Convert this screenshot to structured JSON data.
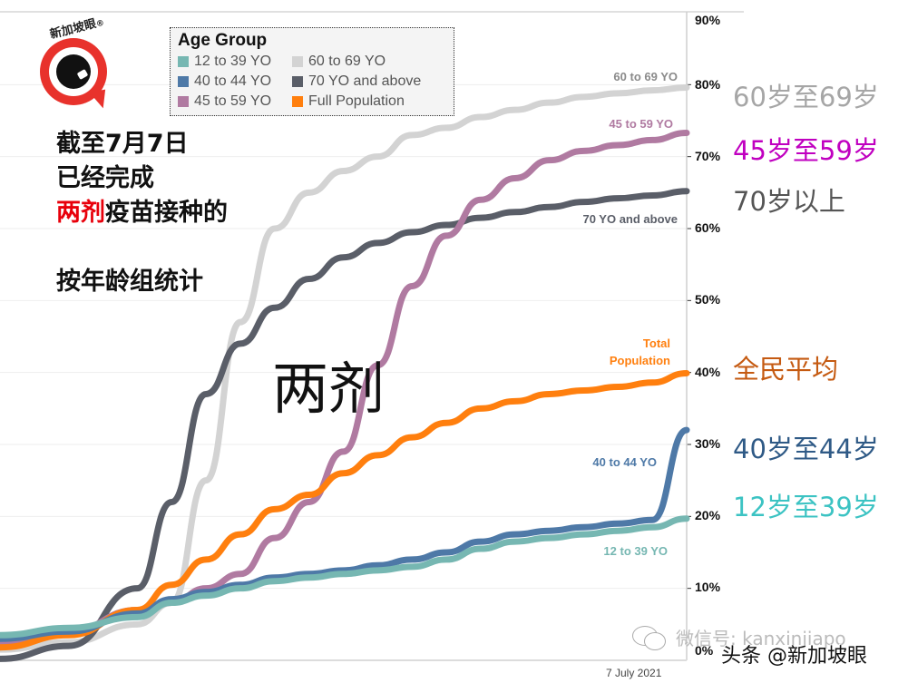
{
  "logo": {
    "text": "新加坡眼",
    "mark": "®"
  },
  "note": {
    "line1": "截至7月7日",
    "line2": "已经完成",
    "line3_red": "两剂",
    "line3_rest": "疫苗接种的",
    "line4": "按年龄组统计"
  },
  "big_label": "两剂",
  "legend": {
    "title": "Age Group",
    "items": [
      {
        "label": "12 to 39 YO",
        "color": "#76b7b2"
      },
      {
        "label": "60 to 69 YO",
        "color": "#d3d3d3"
      },
      {
        "label": "40 to 44 YO",
        "color": "#4e79a7"
      },
      {
        "label": "70 YO and above",
        "color": "#5a5e68"
      },
      {
        "label": "45 to 59 YO",
        "color": "#b07aa1"
      },
      {
        "label": "Full Population",
        "color": "#ff7f0e"
      }
    ]
  },
  "series_labels": {
    "s60_69": "60 to 69 YO",
    "s45_59": "45 to 59 YO",
    "s70": "70 YO and above",
    "total1": "Total",
    "total2": "Population",
    "s40_44": "40 to 44 YO",
    "s12_39": "12 to 39 YO"
  },
  "cn_labels": {
    "s60_69": "60岁至69岁",
    "s45_59": "45岁至59岁",
    "s70": "70岁以上",
    "total": "全民平均",
    "s40_44": "40岁至44岁",
    "s12_39": "12岁至39岁"
  },
  "x_axis": {
    "end_label": "7 July 2021"
  },
  "y_ticks": [
    "90%",
    "80%",
    "70%",
    "60%",
    "50%",
    "40%",
    "30%",
    "20%",
    "10%",
    "0%"
  ],
  "watermark": {
    "wechat": "微信号: kanxinjiapo",
    "toutiao": "头条 @新加坡眼"
  },
  "chart_data": {
    "type": "line",
    "title": "截至7月7日已经完成两剂疫苗接种的按年龄组统计",
    "xlabel": "",
    "ylabel": "",
    "ylim": [
      0,
      90
    ],
    "x_end_label": "7 July 2021",
    "legend_title": "Age Group",
    "legend_position": "top-left",
    "grid": true,
    "x": [
      0,
      0.1,
      0.2,
      0.25,
      0.3,
      0.35,
      0.4,
      0.45,
      0.5,
      0.55,
      0.6,
      0.65,
      0.7,
      0.75,
      0.8,
      0.85,
      0.9,
      0.95,
      1.0
    ],
    "series": [
      {
        "name": "60 to 69 YO",
        "color": "#d3d3d3",
        "values": [
          1.5,
          2.5,
          5,
          8,
          25,
          47,
          60,
          65,
          68,
          70,
          73,
          74,
          75.5,
          76.5,
          77.5,
          78.3,
          78.8,
          79.2,
          79.6
        ]
      },
      {
        "name": "70 YO and above",
        "color": "#5a5e68",
        "values": [
          0.2,
          2,
          10,
          22,
          37,
          44,
          49,
          53,
          56,
          58,
          59.5,
          60.5,
          61.5,
          62.3,
          63,
          63.7,
          64.2,
          64.6,
          65.2
        ]
      },
      {
        "name": "45 to 59 YO",
        "color": "#b07aa1",
        "values": [
          2.5,
          4,
          7,
          8,
          10,
          12,
          17,
          22,
          29,
          41,
          52,
          59,
          64,
          67,
          69.5,
          70.8,
          71.6,
          72.3,
          73.3
        ]
      },
      {
        "name": "Full Population",
        "color": "#ff7f0e",
        "values": [
          1.8,
          3.5,
          7,
          10.5,
          14,
          17.5,
          21,
          23,
          26,
          28.5,
          31,
          33,
          35,
          36,
          37,
          37.5,
          38,
          38.6,
          39.9
        ]
      },
      {
        "name": "40 to 44 YO",
        "color": "#4e79a7",
        "values": [
          3,
          4,
          6.5,
          8.5,
          9.5,
          10.5,
          11.5,
          12,
          12.5,
          13.2,
          14,
          15,
          16.5,
          17.5,
          18,
          18.5,
          19,
          19.5,
          32
        ]
      },
      {
        "name": "12 to 39 YO",
        "color": "#76b7b2",
        "values": [
          3.5,
          4.5,
          6,
          8,
          9,
          10,
          11,
          11.5,
          12,
          12.5,
          13,
          14,
          15.5,
          16.5,
          17,
          17.5,
          18,
          18.5,
          19.7
        ]
      }
    ],
    "annotations": [
      "60岁至69岁",
      "45岁至59岁",
      "70岁以上",
      "全民平均",
      "40岁至44岁",
      "12岁至39岁",
      "两剂"
    ]
  }
}
